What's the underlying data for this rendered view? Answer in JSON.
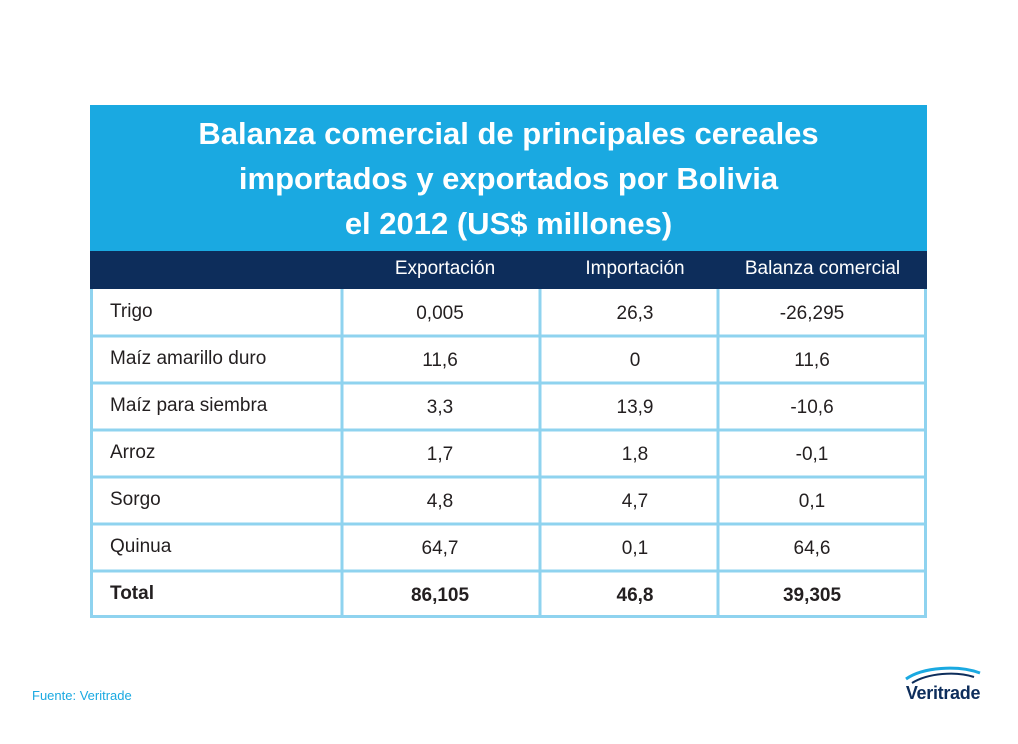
{
  "title": "Balanza comercial de principales cereales\nimportados y exportados por Bolivia\nel 2012 (US$ millones)",
  "source": "Fuente: Veritrade",
  "logo": {
    "text": "Veritrade",
    "icon": "veritrade-swoosh-icon"
  },
  "colors": {
    "title_bg": "#1aa9e1",
    "header_bg": "#0d2d5b",
    "grid": "#8fd3ef",
    "source_text": "#1aa9e1"
  },
  "chart_data": {
    "type": "table",
    "columns": [
      "Exportación",
      "Importación",
      "Balanza comercial"
    ],
    "rows": [
      {
        "label": "Trigo",
        "values": [
          "0,005",
          "26,3",
          "-26,295"
        ]
      },
      {
        "label": "Maíz amarillo duro",
        "values": [
          "11,6",
          "0",
          "11,6"
        ]
      },
      {
        "label": "Maíz para siembra",
        "values": [
          "3,3",
          "13,9",
          "-10,6"
        ]
      },
      {
        "label": "Arroz",
        "values": [
          "1,7",
          "1,8",
          "-0,1"
        ]
      },
      {
        "label": "Sorgo",
        "values": [
          "4,8",
          "4,7",
          "0,1"
        ]
      },
      {
        "label": "Quinua",
        "values": [
          "64,7",
          "0,1",
          "64,6"
        ]
      },
      {
        "label": "Total",
        "values": [
          "86,105",
          "46,8",
          "39,305"
        ]
      }
    ]
  }
}
